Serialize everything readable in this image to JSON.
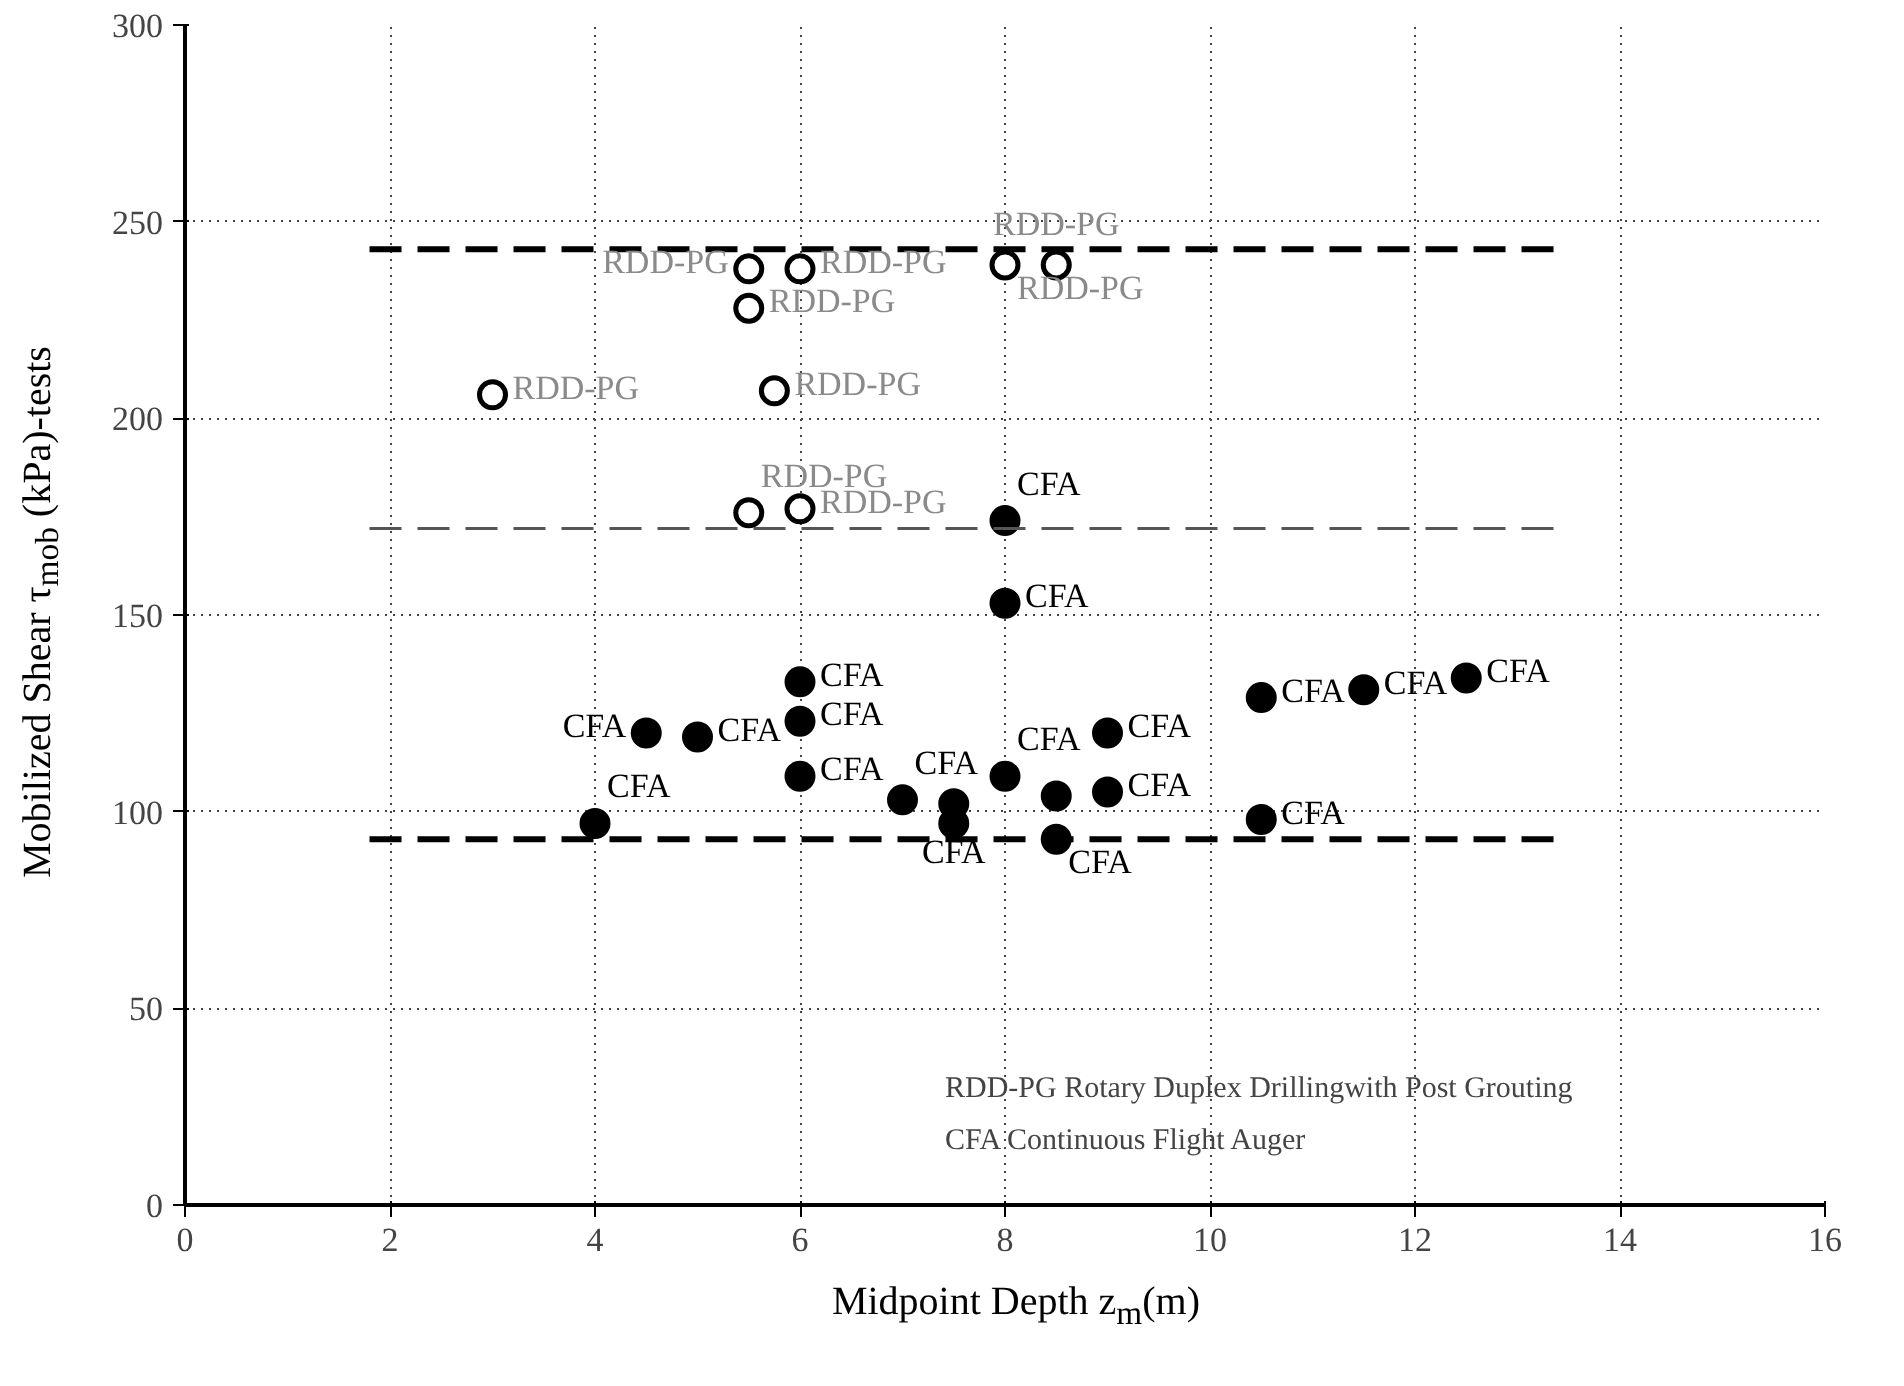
{
  "chart_data": {
    "type": "scatter",
    "xlabel": "Midpoint Depth z$_{m}$(m)",
    "ylabel": "Mobilized Shear τ$_{mob}$ (kPa)-tests",
    "xlim": [
      0,
      16
    ],
    "ylim": [
      0,
      300
    ],
    "xticks": [
      0,
      2,
      4,
      6,
      8,
      10,
      12,
      14,
      16
    ],
    "yticks": [
      0,
      50,
      100,
      150,
      200,
      250,
      300
    ],
    "grid": true,
    "series": [
      {
        "color": "#000000",
        "marker": "circle",
        "x": [
          3,
          5.5,
          5.5,
          5.75,
          5.5,
          6,
          6,
          8,
          8.5
        ],
        "values": [
          206,
          238,
          228,
          207,
          176,
          177,
          238,
          239,
          239
        ],
        "value_labels": [
          "RDD-PG",
          "RDD-PG",
          "RDD-PG",
          "RDD-PG",
          "RDD-PG",
          "RDD-PG",
          "RDD-PG",
          "RDD-PG",
          "RDD-PG"
        ]
      },
      {
        "color": "#000000",
        "marker": "circle",
        "x": [
          4,
          4.5,
          5,
          6,
          6,
          6,
          7,
          7.5,
          7.5,
          8,
          8,
          8,
          8.5,
          8.5,
          9,
          9,
          10.5,
          10.5,
          11.5,
          12.5
        ],
        "values": [
          97,
          120,
          119,
          133,
          123,
          109,
          103,
          102,
          97,
          109,
          174,
          153,
          104,
          93,
          120,
          105,
          129,
          98,
          131,
          134
        ],
        "value_labels": [
          "CFA",
          "CFA",
          "CFA",
          "CFA",
          "CFA",
          "CFA",
          "CFA",
          null,
          "CFA",
          "CFA",
          "CFA",
          "CFA",
          null,
          "CFA",
          "CFA",
          "CFA",
          "CFA",
          "CFA",
          "CFA",
          "CFA"
        ]
      },
      {
        "type": "line",
        "color": "#000000",
        "line_style": "dashed",
        "x": [
          1.8,
          13.4
        ],
        "values": [
          243,
          243
        ]
      },
      {
        "type": "line",
        "color": "#555555",
        "line_style": "dashed",
        "x": [
          1.8,
          13.4
        ],
        "values": [
          172,
          172
        ]
      },
      {
        "type": "line",
        "color": "#000000",
        "line_style": "dashed",
        "x": [
          1.8,
          13.4
        ],
        "values": [
          93,
          93
        ]
      }
    ],
    "annotations": [
      "RDD-PG Rotary Duplex Drillingwith Post Grouting",
      "CFA Continuous Flight Auger"
    ]
  }
}
